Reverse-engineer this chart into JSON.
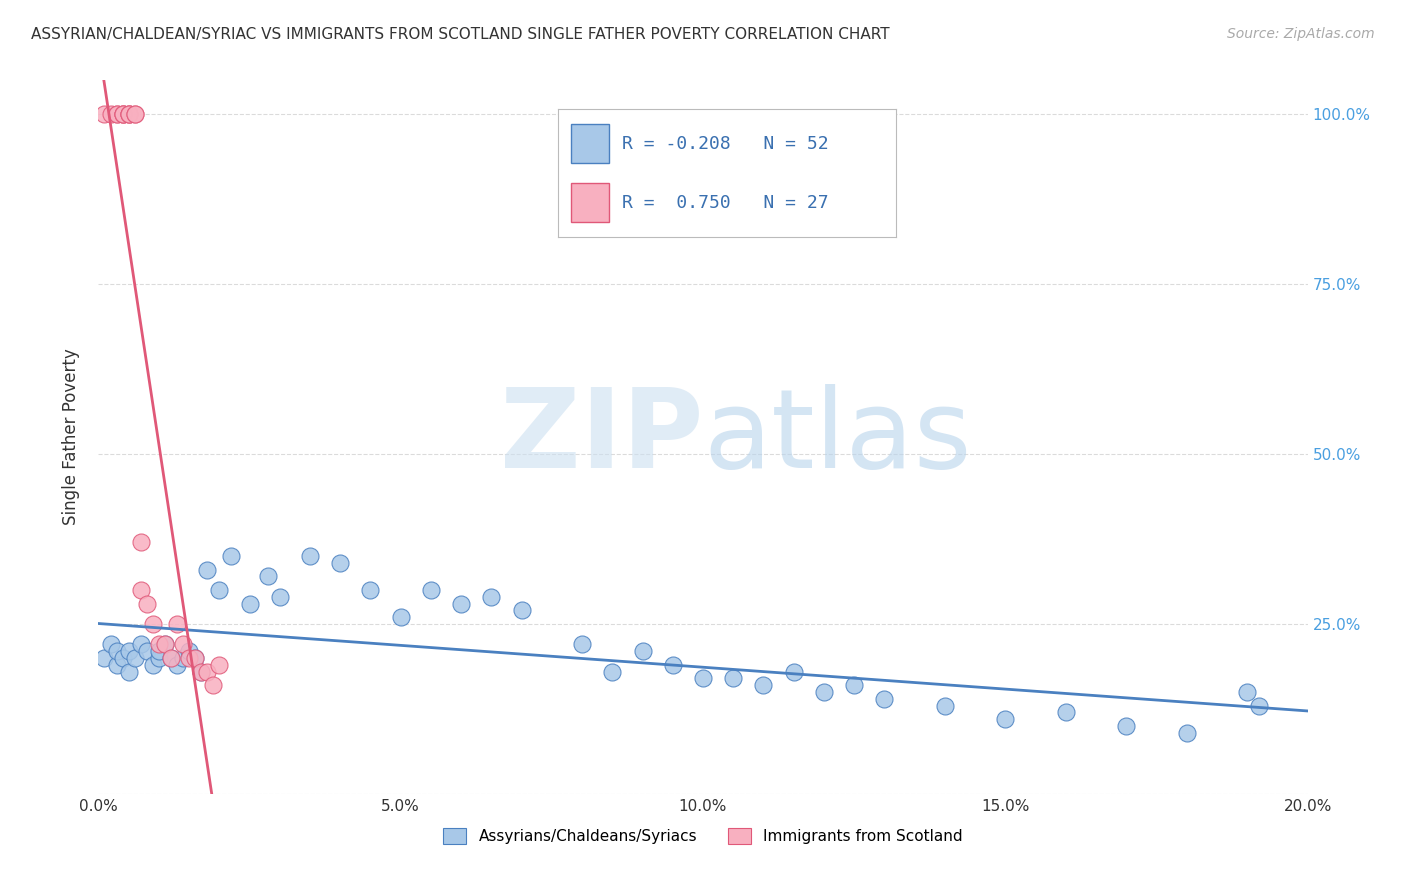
{
  "title": "ASSYRIAN/CHALDEAN/SYRIAC VS IMMIGRANTS FROM SCOTLAND SINGLE FATHER POVERTY CORRELATION CHART",
  "source": "Source: ZipAtlas.com",
  "ylabel": "Single Father Poverty",
  "xlim": [
    0.0,
    0.2
  ],
  "ylim": [
    0.0,
    1.05
  ],
  "xtick_labels": [
    "0.0%",
    "5.0%",
    "10.0%",
    "15.0%",
    "20.0%"
  ],
  "xtick_vals": [
    0.0,
    0.05,
    0.1,
    0.15,
    0.2
  ],
  "ytick_vals": [
    0.0,
    0.25,
    0.5,
    0.75,
    1.0
  ],
  "right_ytick_labels": [
    "",
    "25.0%",
    "50.0%",
    "75.0%",
    "100.0%"
  ],
  "blue_color": "#a8c8e8",
  "pink_color": "#f8b0c0",
  "blue_line_color": "#4a80c0",
  "pink_line_color": "#e05878",
  "legend_R1": "-0.208",
  "legend_N1": "52",
  "legend_R2": "0.750",
  "legend_N2": "27",
  "legend_label1": "Assyrians/Chaldeans/Syriacs",
  "legend_label2": "Immigrants from Scotland",
  "blue_x": [
    0.001,
    0.002,
    0.003,
    0.003,
    0.004,
    0.005,
    0.005,
    0.006,
    0.007,
    0.008,
    0.009,
    0.01,
    0.01,
    0.011,
    0.012,
    0.013,
    0.014,
    0.015,
    0.016,
    0.017,
    0.018,
    0.02,
    0.022,
    0.025,
    0.028,
    0.03,
    0.035,
    0.04,
    0.045,
    0.05,
    0.055,
    0.06,
    0.065,
    0.07,
    0.08,
    0.085,
    0.09,
    0.095,
    0.1,
    0.105,
    0.11,
    0.115,
    0.12,
    0.125,
    0.13,
    0.14,
    0.15,
    0.16,
    0.17,
    0.18,
    0.19,
    0.192
  ],
  "blue_y": [
    0.2,
    0.22,
    0.19,
    0.21,
    0.2,
    0.18,
    0.21,
    0.2,
    0.22,
    0.21,
    0.19,
    0.2,
    0.21,
    0.22,
    0.2,
    0.19,
    0.2,
    0.21,
    0.2,
    0.18,
    0.33,
    0.3,
    0.35,
    0.28,
    0.32,
    0.29,
    0.35,
    0.34,
    0.3,
    0.26,
    0.3,
    0.28,
    0.29,
    0.27,
    0.22,
    0.18,
    0.21,
    0.19,
    0.17,
    0.17,
    0.16,
    0.18,
    0.15,
    0.16,
    0.14,
    0.13,
    0.11,
    0.12,
    0.1,
    0.09,
    0.15,
    0.13
  ],
  "pink_x": [
    0.001,
    0.002,
    0.003,
    0.003,
    0.004,
    0.004,
    0.004,
    0.005,
    0.005,
    0.005,
    0.006,
    0.006,
    0.007,
    0.007,
    0.008,
    0.009,
    0.01,
    0.011,
    0.012,
    0.013,
    0.014,
    0.015,
    0.016,
    0.017,
    0.018,
    0.019,
    0.02
  ],
  "pink_y": [
    1.0,
    1.0,
    1.0,
    1.0,
    1.0,
    1.0,
    1.0,
    1.0,
    1.0,
    1.0,
    1.0,
    1.0,
    0.37,
    0.3,
    0.28,
    0.25,
    0.22,
    0.22,
    0.2,
    0.25,
    0.22,
    0.2,
    0.2,
    0.18,
    0.18,
    0.16,
    0.19
  ],
  "blue_trend": [
    -4.5,
    0.235
  ],
  "pink_trend": [
    60.0,
    -0.02
  ],
  "background_color": "#ffffff",
  "grid_color": "#d8d8d8"
}
